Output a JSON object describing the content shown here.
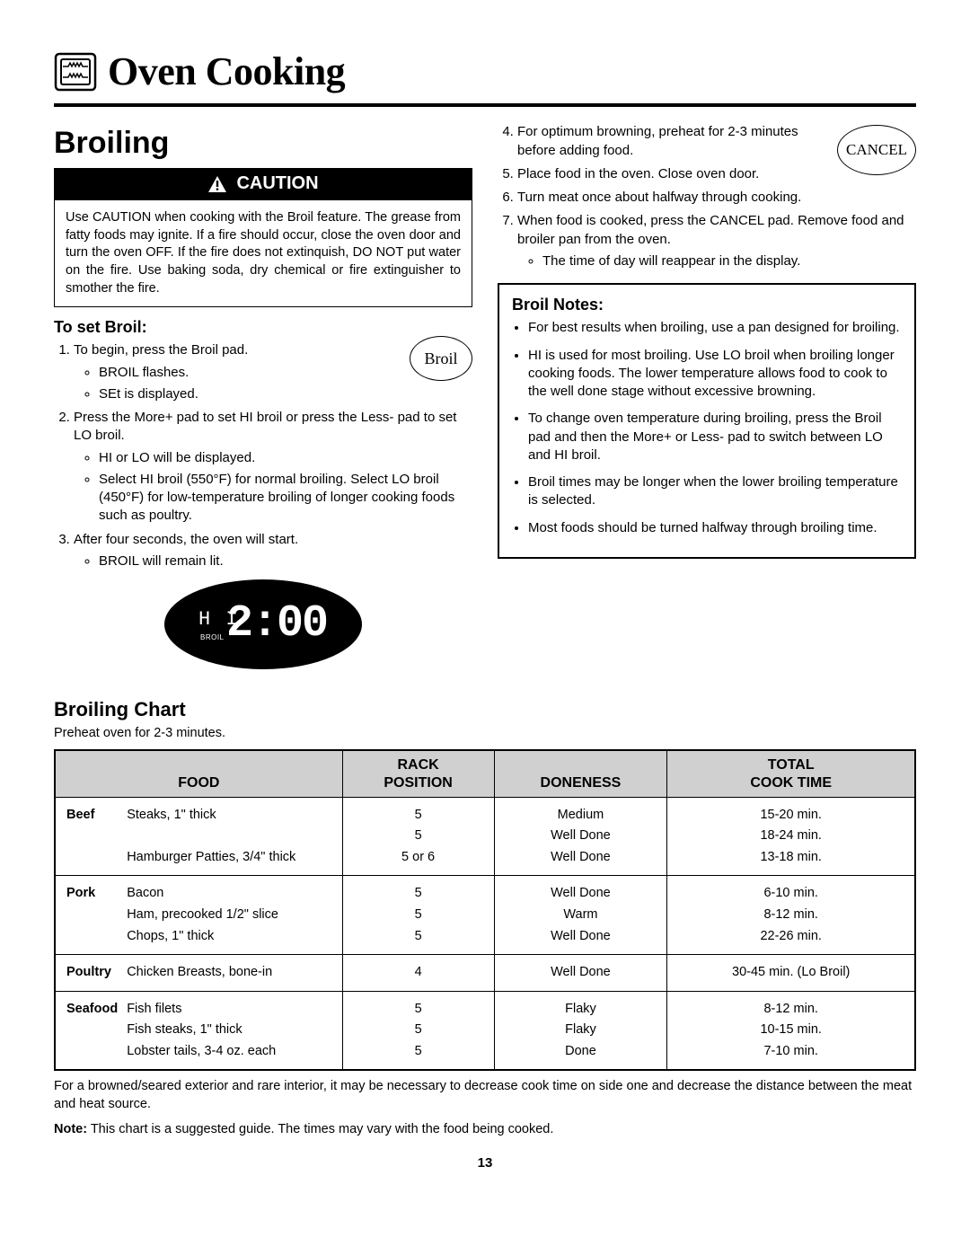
{
  "header": {
    "title": "Oven Cooking"
  },
  "section": {
    "title": "Broiling"
  },
  "caution": {
    "label": "CAUTION",
    "text": "Use CAUTION when cooking with the Broil feature. The grease from fatty foods may ignite. If a fire should occur, close the oven door and turn the oven OFF. If the fire does not extinquish, DO NOT put water on the fire. Use baking soda, dry chemical or fire extinguisher to smother the fire."
  },
  "set_broil": {
    "heading": "To set Broil:",
    "button_label": "Broil",
    "step1": "To begin, press the Broil pad.",
    "step1_b1": "BROIL flashes.",
    "step1_b2": "SEt is displayed.",
    "step2": "Press the More+ pad to set HI broil or press the Less- pad to set LO broil.",
    "step2_b1": "HI or LO will be displayed.",
    "step2_b2": "Select HI broil (550°F) for normal broiling. Select LO broil (450°F) for low-temperature broiling of longer cooking foods such as poultry.",
    "step3": "After four seconds, the oven will start.",
    "step3_b1": "BROIL will remain lit."
  },
  "display": {
    "small": "H I",
    "label": "BROIL",
    "time": "2:00"
  },
  "right_steps": {
    "s4": "For optimum browning, preheat for 2-3 minutes before adding food.",
    "s5": "Place food in the oven.  Close oven door.",
    "s6": "Turn meat once about halfway through cooking.",
    "s7": "When food is cooked, press the CANCEL pad. Remove food and broiler pan from the oven.",
    "s7_b1": "The time of day will reappear in the display.",
    "cancel_label": "CANCEL"
  },
  "notes": {
    "heading": "Broil Notes:",
    "n1": "For best results when broiling, use a pan designed for broiling.",
    "n2": "HI is used for most broiling.  Use LO broil when broiling longer cooking foods.  The lower temperature allows food to cook to the well done stage without excessive browning.",
    "n3": "To change oven temperature during broiling, press the Broil pad and then the More+ or Less- pad to switch between LO and HI broil.",
    "n4": "Broil times may be longer when the lower broiling temperature is selected.",
    "n5": "Most foods should be turned halfway through broiling time."
  },
  "chart": {
    "title": "Broiling Chart",
    "subtitle": "Preheat oven for 2-3 minutes.",
    "columns": {
      "c1": "Food",
      "c2": "Rack Position",
      "c3": "Doneness",
      "c4": "Total Cook Time"
    },
    "groups": [
      {
        "category": "Beef",
        "rows": [
          {
            "item": "Steaks, 1\" thick",
            "rack": "5",
            "done": "Medium",
            "time": "15-20 min."
          },
          {
            "item": "",
            "rack": "5",
            "done": "Well Done",
            "time": "18-24 min."
          },
          {
            "item": "Hamburger Patties, 3/4\" thick",
            "rack": "5 or 6",
            "done": "Well Done",
            "time": "13-18 min."
          }
        ]
      },
      {
        "category": "Pork",
        "rows": [
          {
            "item": "Bacon",
            "rack": "5",
            "done": "Well Done",
            "time": "6-10 min."
          },
          {
            "item": "Ham, precooked 1/2\" slice",
            "rack": "5",
            "done": "Warm",
            "time": "8-12 min."
          },
          {
            "item": "Chops, 1\" thick",
            "rack": "5",
            "done": "Well Done",
            "time": "22-26 min."
          }
        ]
      },
      {
        "category": "Poultry",
        "rows": [
          {
            "item": "Chicken Breasts, bone-in",
            "rack": "4",
            "done": "Well Done",
            "time": "30-45 min. (Lo Broil)"
          }
        ]
      },
      {
        "category": "Seafood",
        "rows": [
          {
            "item": "Fish filets",
            "rack": "5",
            "done": "Flaky",
            "time": "8-12 min."
          },
          {
            "item": "Fish steaks, 1\" thick",
            "rack": "5",
            "done": "Flaky",
            "time": "10-15 min."
          },
          {
            "item": "Lobster tails, 3-4 oz. each",
            "rack": "5",
            "done": "Done",
            "time": "7-10 min."
          }
        ]
      }
    ],
    "footnote1": "For a browned/seared exterior and rare interior, it may be necessary to decrease cook time on side one and decrease the distance between the meat and heat source.",
    "footnote2_label": "Note:",
    "footnote2": "  This chart is a suggested guide. The times may vary with the food being cooked."
  },
  "page_number": "13"
}
